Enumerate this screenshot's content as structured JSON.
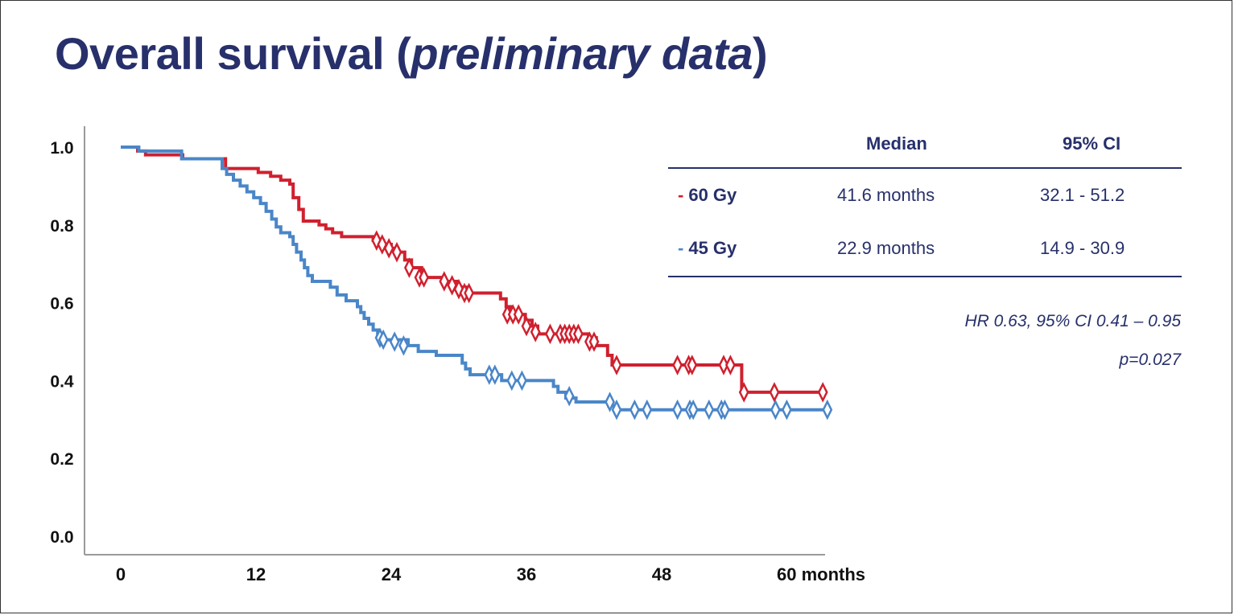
{
  "title": {
    "main": "Overall survival (",
    "italic": "preliminary data",
    "close": ")"
  },
  "table": {
    "headers": [
      "",
      "Median",
      "95% CI"
    ],
    "rows": [
      {
        "dash": "-",
        "label": "60 Gy",
        "median": "41.6 months",
        "ci": "32.1 - 51.2",
        "color": "#d0202e"
      },
      {
        "dash": "-",
        "label": "45 Gy",
        "median": "22.9 months",
        "ci": "14.9 - 30.9",
        "color": "#4a86c8"
      }
    ],
    "rule_color": "#27306b"
  },
  "stats": {
    "hr": "HR 0.63, 95% CI 0.41 – 0.95",
    "p": "p=0.027"
  },
  "chart_data": {
    "type": "line",
    "subtype": "kaplan-meier step",
    "title": "Overall survival (preliminary data)",
    "xlabel": "months",
    "ylabel": "",
    "xlim": [
      -3.5,
      62.5
    ],
    "ylim": [
      -0.05,
      1.05
    ],
    "xticks": [
      0,
      12,
      24,
      36,
      48,
      60
    ],
    "xtick_labels": [
      "0",
      "12",
      "24",
      "36",
      "48",
      "60 months"
    ],
    "yticks": [
      0.0,
      0.2,
      0.4,
      0.6,
      0.8,
      1.0
    ],
    "ytick_labels": [
      "0.0",
      "0.2",
      "0.4",
      "0.6",
      "0.8",
      "1.0"
    ],
    "grid": false,
    "legend": "table top-right",
    "series": [
      {
        "name": "60 Gy",
        "color": "#d0202e",
        "steps": [
          [
            0,
            1.0
          ],
          [
            1.5,
            0.99
          ],
          [
            2.2,
            0.98
          ],
          [
            5.5,
            0.97
          ],
          [
            9.3,
            0.945
          ],
          [
            12.2,
            0.935
          ],
          [
            13.3,
            0.925
          ],
          [
            14.2,
            0.915
          ],
          [
            15.0,
            0.905
          ],
          [
            15.3,
            0.87
          ],
          [
            15.8,
            0.84
          ],
          [
            16.2,
            0.81
          ],
          [
            17.6,
            0.8
          ],
          [
            18.2,
            0.79
          ],
          [
            18.8,
            0.78
          ],
          [
            19.6,
            0.77
          ],
          [
            22.4,
            0.76
          ],
          [
            23.3,
            0.75
          ],
          [
            24.0,
            0.74
          ],
          [
            24.6,
            0.73
          ],
          [
            25.2,
            0.71
          ],
          [
            25.8,
            0.69
          ],
          [
            26.7,
            0.665
          ],
          [
            28.6,
            0.655
          ],
          [
            29.8,
            0.64
          ],
          [
            30.7,
            0.625
          ],
          [
            33.7,
            0.61
          ],
          [
            34.2,
            0.59
          ],
          [
            34.6,
            0.57
          ],
          [
            35.9,
            0.555
          ],
          [
            36.5,
            0.54
          ],
          [
            37.0,
            0.52
          ],
          [
            41.5,
            0.51
          ],
          [
            42.2,
            0.49
          ],
          [
            43.2,
            0.465
          ],
          [
            43.6,
            0.44
          ],
          [
            55.1,
            0.37
          ],
          [
            62.7,
            0.37
          ]
        ],
        "censored": [
          [
            22.7,
            0.76
          ],
          [
            23.2,
            0.75
          ],
          [
            23.8,
            0.74
          ],
          [
            24.5,
            0.73
          ],
          [
            25.6,
            0.69
          ],
          [
            26.5,
            0.665
          ],
          [
            26.9,
            0.665
          ],
          [
            28.7,
            0.655
          ],
          [
            29.4,
            0.645
          ],
          [
            30.0,
            0.635
          ],
          [
            30.5,
            0.625
          ],
          [
            30.9,
            0.625
          ],
          [
            34.3,
            0.57
          ],
          [
            34.8,
            0.57
          ],
          [
            35.3,
            0.57
          ],
          [
            36.0,
            0.54
          ],
          [
            36.8,
            0.525
          ],
          [
            38.1,
            0.52
          ],
          [
            39.0,
            0.52
          ],
          [
            39.4,
            0.52
          ],
          [
            39.8,
            0.52
          ],
          [
            40.2,
            0.52
          ],
          [
            40.6,
            0.52
          ],
          [
            41.6,
            0.5
          ],
          [
            42.0,
            0.5
          ],
          [
            44.0,
            0.44
          ],
          [
            49.4,
            0.44
          ],
          [
            50.4,
            0.44
          ],
          [
            50.7,
            0.44
          ],
          [
            53.5,
            0.44
          ],
          [
            54.1,
            0.44
          ],
          [
            55.3,
            0.37
          ],
          [
            58.0,
            0.37
          ],
          [
            62.3,
            0.37
          ]
        ]
      },
      {
        "name": "45 Gy",
        "color": "#4a86c8",
        "steps": [
          [
            0,
            1.0
          ],
          [
            1.6,
            0.99
          ],
          [
            5.4,
            0.97
          ],
          [
            9.0,
            0.945
          ],
          [
            9.4,
            0.93
          ],
          [
            10.0,
            0.915
          ],
          [
            10.6,
            0.9
          ],
          [
            11.2,
            0.885
          ],
          [
            11.8,
            0.87
          ],
          [
            12.4,
            0.855
          ],
          [
            12.9,
            0.835
          ],
          [
            13.4,
            0.815
          ],
          [
            13.8,
            0.795
          ],
          [
            14.2,
            0.78
          ],
          [
            15.0,
            0.77
          ],
          [
            15.3,
            0.75
          ],
          [
            15.6,
            0.73
          ],
          [
            16.0,
            0.71
          ],
          [
            16.3,
            0.69
          ],
          [
            16.6,
            0.67
          ],
          [
            17.0,
            0.655
          ],
          [
            18.6,
            0.64
          ],
          [
            19.2,
            0.62
          ],
          [
            20.0,
            0.605
          ],
          [
            21.0,
            0.59
          ],
          [
            21.3,
            0.575
          ],
          [
            21.6,
            0.56
          ],
          [
            22.0,
            0.545
          ],
          [
            22.4,
            0.53
          ],
          [
            22.8,
            0.515
          ],
          [
            23.1,
            0.505
          ],
          [
            25.5,
            0.49
          ],
          [
            26.4,
            0.475
          ],
          [
            28.0,
            0.465
          ],
          [
            30.3,
            0.445
          ],
          [
            30.6,
            0.43
          ],
          [
            31.0,
            0.415
          ],
          [
            33.8,
            0.4
          ],
          [
            38.4,
            0.385
          ],
          [
            38.8,
            0.37
          ],
          [
            39.5,
            0.355
          ],
          [
            40.4,
            0.345
          ],
          [
            43.3,
            0.335
          ],
          [
            44.0,
            0.325
          ],
          [
            62.7,
            0.325
          ]
        ],
        "censored": [
          [
            23.0,
            0.51
          ],
          [
            23.3,
            0.505
          ],
          [
            24.3,
            0.5
          ],
          [
            25.1,
            0.49
          ],
          [
            32.7,
            0.415
          ],
          [
            33.2,
            0.415
          ],
          [
            34.7,
            0.4
          ],
          [
            35.6,
            0.4
          ],
          [
            39.8,
            0.36
          ],
          [
            43.4,
            0.345
          ],
          [
            44.0,
            0.325
          ],
          [
            45.6,
            0.325
          ],
          [
            46.7,
            0.325
          ],
          [
            49.4,
            0.325
          ],
          [
            50.5,
            0.325
          ],
          [
            50.8,
            0.325
          ],
          [
            52.2,
            0.325
          ],
          [
            53.3,
            0.325
          ],
          [
            53.6,
            0.325
          ],
          [
            58.1,
            0.325
          ],
          [
            59.1,
            0.325
          ],
          [
            62.7,
            0.325
          ]
        ]
      }
    ]
  }
}
